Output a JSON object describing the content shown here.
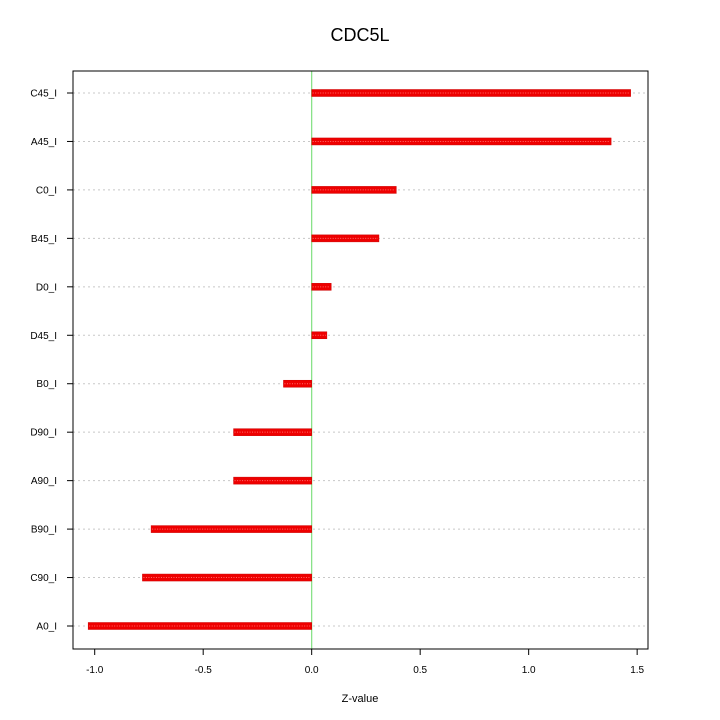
{
  "chart_data": {
    "type": "bar",
    "orientation": "horizontal",
    "title": "CDC5L",
    "xlabel": "Z-value",
    "ylabel": "",
    "xlim": [
      -1.1,
      1.55
    ],
    "xticks": [
      -1.0,
      -0.5,
      0.0,
      0.5,
      1.0,
      1.5
    ],
    "xtick_labels": [
      "-1.0",
      "-0.5",
      "0.0",
      "0.5",
      "1.0",
      "1.5"
    ],
    "grid": true,
    "reference_line": 0.0,
    "colors": {
      "bar": "#ee0000",
      "reference_line": "#7fe07f",
      "grid": "#c8c8c8"
    },
    "categories": [
      "C45_I",
      "A45_I",
      "C0_I",
      "B45_I",
      "D0_I",
      "D45_I",
      "B0_I",
      "D90_I",
      "A90_I",
      "B90_I",
      "C90_I",
      "A0_I"
    ],
    "values": [
      1.47,
      1.38,
      0.39,
      0.31,
      0.09,
      0.07,
      -0.13,
      -0.36,
      -0.36,
      -0.74,
      -0.78,
      -1.03
    ]
  }
}
